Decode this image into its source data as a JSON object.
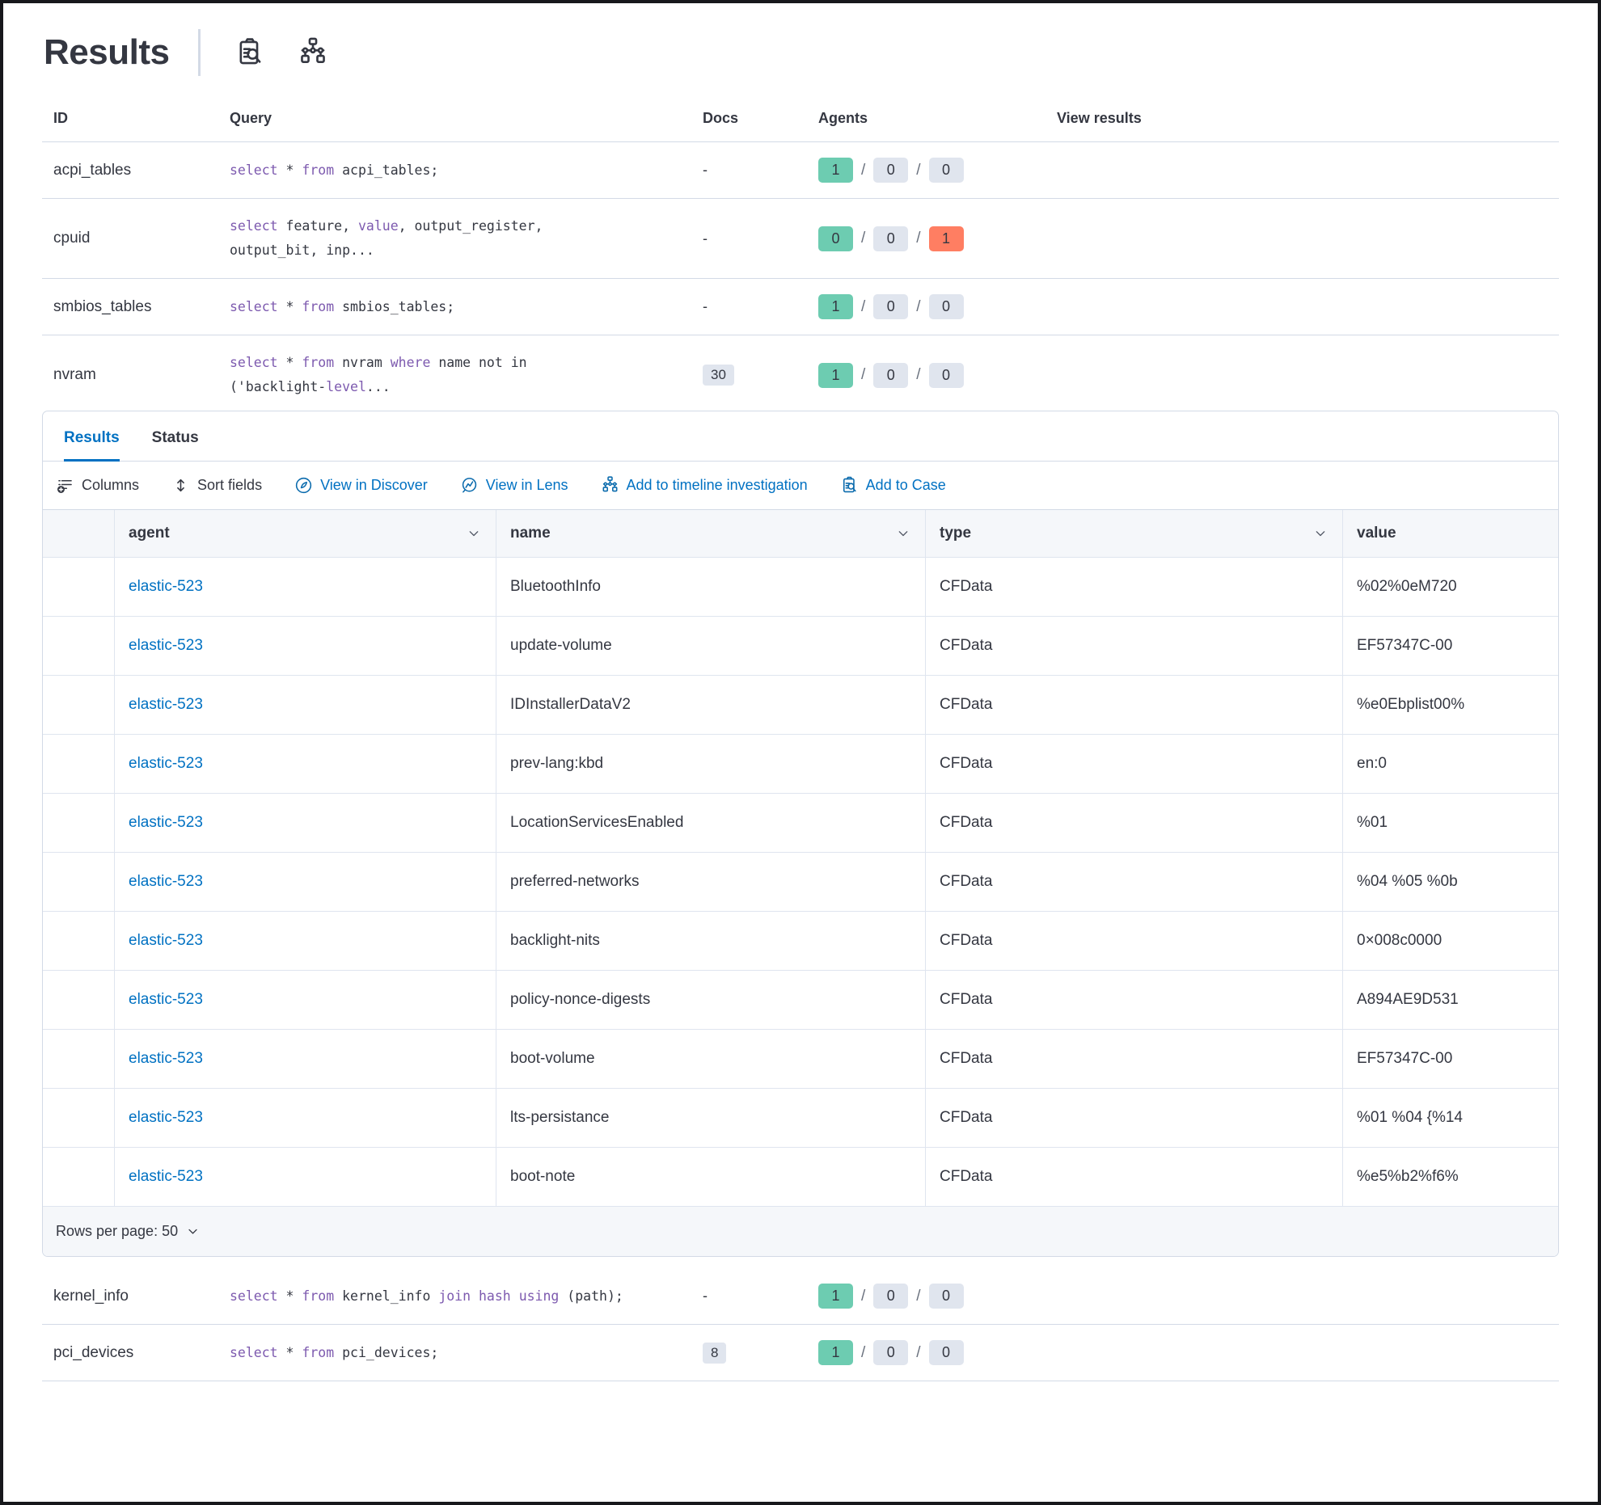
{
  "header": {
    "title": "Results",
    "icons": [
      "inspect-icon",
      "timeline-icon"
    ]
  },
  "colors": {
    "link_blue": "#0071c2",
    "icon_blue": "#0b6bad",
    "badge_green": "#6dccb1",
    "badge_gray": "#e0e5ee",
    "badge_red": "#ff7e62",
    "keyword_purple": "#7d5aaf",
    "text_dark": "#343741",
    "border": "#d3dae6"
  },
  "queries_table": {
    "headers": {
      "id": "ID",
      "query": "Query",
      "docs": "Docs",
      "agents": "Agents",
      "view": "View results"
    },
    "rows": [
      {
        "id": "acpi_tables",
        "docs": "-",
        "agents": [
          "1",
          "0",
          "0"
        ],
        "failed_red": false,
        "expanded": false,
        "query": [
          {
            "t": "select",
            "kw": true
          },
          {
            "t": " * ",
            "kw": false
          },
          {
            "t": "from",
            "kw": true
          },
          {
            "t": " acpi_tables;",
            "kw": false
          }
        ]
      },
      {
        "id": "cpuid",
        "docs": "-",
        "agents": [
          "0",
          "0",
          "1"
        ],
        "failed_red": true,
        "expanded": false,
        "query": [
          {
            "t": "select",
            "kw": true
          },
          {
            "t": " feature, ",
            "kw": false
          },
          {
            "t": "value",
            "kw": true
          },
          {
            "t": ", output_register,\noutput_bit, inp...",
            "kw": false
          }
        ]
      },
      {
        "id": "smbios_tables",
        "docs": "-",
        "agents": [
          "1",
          "0",
          "0"
        ],
        "failed_red": false,
        "expanded": false,
        "query": [
          {
            "t": "select",
            "kw": true
          },
          {
            "t": " * ",
            "kw": false
          },
          {
            "t": "from",
            "kw": true
          },
          {
            "t": " smbios_tables;",
            "kw": false
          }
        ]
      },
      {
        "id": "nvram",
        "docs": "30",
        "agents": [
          "1",
          "0",
          "0"
        ],
        "failed_red": false,
        "expanded": true,
        "query": [
          {
            "t": "select",
            "kw": true
          },
          {
            "t": " * ",
            "kw": false
          },
          {
            "t": "from",
            "kw": true
          },
          {
            "t": " nvram ",
            "kw": false
          },
          {
            "t": "where",
            "kw": true
          },
          {
            "t": " name not in\n('backlight-",
            "kw": false
          },
          {
            "t": "level",
            "kw": true
          },
          {
            "t": "...",
            "kw": false
          }
        ]
      },
      {
        "id": "kernel_info",
        "docs": "-",
        "agents": [
          "1",
          "0",
          "0"
        ],
        "failed_red": false,
        "expanded": false,
        "query": [
          {
            "t": "select",
            "kw": true
          },
          {
            "t": " * ",
            "kw": false
          },
          {
            "t": "from",
            "kw": true
          },
          {
            "t": " kernel_info ",
            "kw": false
          },
          {
            "t": "join",
            "kw": true
          },
          {
            "t": " ",
            "kw": false
          },
          {
            "t": "hash",
            "kw": true
          },
          {
            "t": " ",
            "kw": false
          },
          {
            "t": "using",
            "kw": true
          },
          {
            "t": " (path);",
            "kw": false
          }
        ]
      },
      {
        "id": "pci_devices",
        "docs": "8",
        "agents": [
          "1",
          "0",
          "0"
        ],
        "failed_red": false,
        "expanded": false,
        "query": [
          {
            "t": "select",
            "kw": true
          },
          {
            "t": " * ",
            "kw": false
          },
          {
            "t": "from",
            "kw": true
          },
          {
            "t": " pci_devices;",
            "kw": false
          }
        ]
      }
    ]
  },
  "panel": {
    "tabs": [
      {
        "label": "Results",
        "active": true
      },
      {
        "label": "Status",
        "active": false
      }
    ],
    "toolbar": [
      {
        "label": "Columns",
        "icon": "columns-icon",
        "blue": false
      },
      {
        "label": "Sort fields",
        "icon": "sort-icon",
        "blue": false
      },
      {
        "label": "View in Discover",
        "icon": "discover-icon",
        "blue": true
      },
      {
        "label": "View in Lens",
        "icon": "lens-icon",
        "blue": true
      },
      {
        "label": "Add to timeline investigation",
        "icon": "timeline-icon",
        "blue": true
      },
      {
        "label": "Add to Case",
        "icon": "case-icon",
        "blue": true
      }
    ],
    "grid": {
      "columns": [
        "agent",
        "name",
        "type",
        "value"
      ],
      "rows": [
        {
          "agent": "elastic-523",
          "name": "BluetoothInfo",
          "type": "CFData",
          "value": "%02%0eM720"
        },
        {
          "agent": "elastic-523",
          "name": "update-volume",
          "type": "CFData",
          "value": "EF57347C-00"
        },
        {
          "agent": "elastic-523",
          "name": "IDInstallerDataV2",
          "type": "CFData",
          "value": "%e0Ebplist00%"
        },
        {
          "agent": "elastic-523",
          "name": "prev-lang:kbd",
          "type": "CFData",
          "value": "en:0"
        },
        {
          "agent": "elastic-523",
          "name": "LocationServicesEnabled",
          "type": "CFData",
          "value": "%01"
        },
        {
          "agent": "elastic-523",
          "name": "preferred-networks",
          "type": "CFData",
          "value": "%04 %05 %0b"
        },
        {
          "agent": "elastic-523",
          "name": "backlight-nits",
          "type": "CFData",
          "value": "0×008c0000"
        },
        {
          "agent": "elastic-523",
          "name": "policy-nonce-digests",
          "type": "CFData",
          "value": "A894AE9D531"
        },
        {
          "agent": "elastic-523",
          "name": "boot-volume",
          "type": "CFData",
          "value": "EF57347C-00"
        },
        {
          "agent": "elastic-523",
          "name": "lts-persistance",
          "type": "CFData",
          "value": "%01 %04 {%14"
        },
        {
          "agent": "elastic-523",
          "name": "boot-note",
          "type": "CFData",
          "value": "%e5%b2%f6%"
        }
      ],
      "footer": {
        "rows_per_page_label": "Rows per page: 50"
      }
    }
  }
}
